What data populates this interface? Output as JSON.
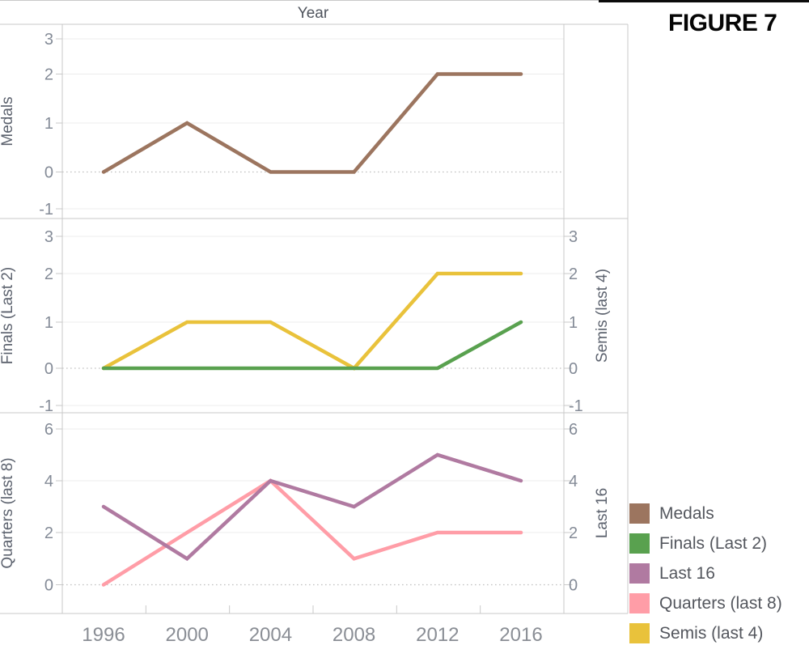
{
  "header": {
    "title": "Year",
    "figure_label": "FIGURE 7"
  },
  "colors": {
    "medals": "#9C755F",
    "finals": "#59A14F",
    "last16": "#B07AA1",
    "quarters": "#FF9DA7",
    "semis": "#E9C23B",
    "panel_border": "#c9c9c9",
    "gridline": "#ececec",
    "zero_line": "#c0c0c0",
    "tick_mark": "#c9c9c9",
    "tick_label": "#848b97",
    "year_label": "#8a8e95",
    "axis_title": "#5c626e"
  },
  "chart_data": {
    "type": "line",
    "x_title": "Year",
    "categories": [
      "1996",
      "2000",
      "2004",
      "2008",
      "2012",
      "2016"
    ],
    "panels": [
      {
        "left_axis": {
          "title": "Medals",
          "ticks": [
            3,
            2,
            1,
            0,
            -1
          ]
        },
        "right_axis": null,
        "series": [
          {
            "name": "Medals",
            "color_key": "medals",
            "values": [
              0,
              1,
              0,
              0,
              2,
              2
            ]
          }
        ]
      },
      {
        "left_axis": {
          "title": "Finals (Last 2)",
          "ticks": [
            3,
            2,
            1,
            0,
            -1
          ]
        },
        "right_axis": {
          "title": "Semis (last 4)",
          "ticks": [
            3,
            2,
            1,
            0,
            -1
          ]
        },
        "series": [
          {
            "name": "Semis (last 4)",
            "color_key": "semis",
            "values": [
              0,
              1,
              1,
              0,
              2,
              2
            ]
          },
          {
            "name": "Finals (Last 2)",
            "color_key": "finals",
            "values": [
              0,
              0,
              0,
              0,
              0,
              1
            ]
          }
        ]
      },
      {
        "left_axis": {
          "title": "Quarters (last 8)",
          "ticks": [
            6,
            4,
            2,
            0
          ]
        },
        "right_axis": {
          "title": "Last 16",
          "ticks": [
            6,
            4,
            2,
            0
          ]
        },
        "series": [
          {
            "name": "Quarters (last 8)",
            "color_key": "quarters",
            "values": [
              0,
              2,
              4,
              1,
              2,
              2
            ]
          },
          {
            "name": "Last 16",
            "color_key": "last16",
            "values": [
              3,
              1,
              4,
              3,
              5,
              4
            ]
          }
        ]
      }
    ],
    "legend_position": "right"
  },
  "legend": {
    "items": [
      {
        "label": "Medals",
        "color_key": "medals"
      },
      {
        "label": "Finals (Last 2)",
        "color_key": "finals"
      },
      {
        "label": "Last 16",
        "color_key": "last16"
      },
      {
        "label": "Quarters (last 8)",
        "color_key": "quarters"
      },
      {
        "label": "Semis (last 4)",
        "color_key": "semis"
      }
    ]
  }
}
